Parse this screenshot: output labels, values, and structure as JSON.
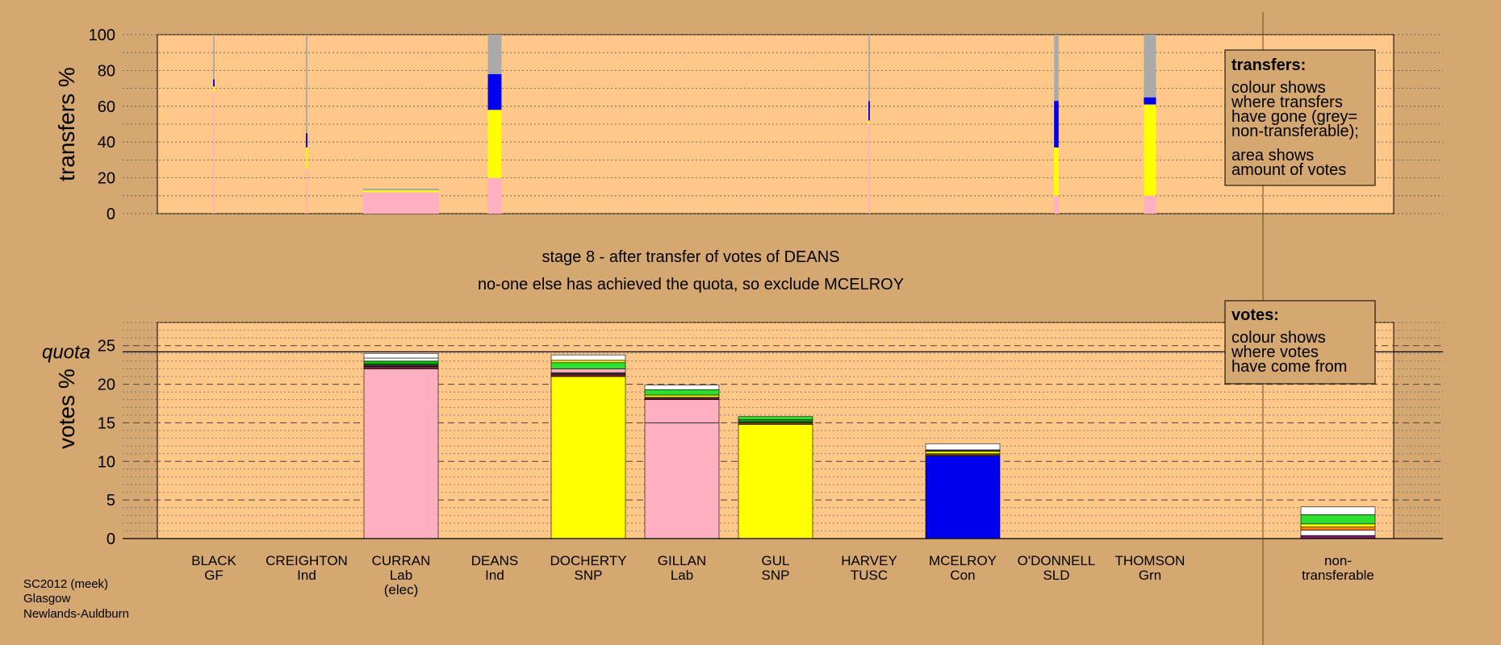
{
  "chart_data": [
    {
      "type": "bar",
      "stacked": true,
      "ylabel": "transfers %",
      "ylim": [
        0,
        100
      ],
      "yticks": [
        0,
        20,
        40,
        60,
        80,
        100
      ],
      "categories": [
        "BLACK",
        "CREIGHTON",
        "CURRAN",
        "DEANS",
        "DOCHERTY",
        "GILLAN",
        "GUL",
        "HARVEY",
        "MCELROY",
        "O'DONNELL",
        "THOMSON"
      ],
      "bar_width_relative": [
        0.02,
        0.02,
        1.0,
        0.18,
        0.0,
        0.0,
        0.0,
        0.02,
        0.0,
        0.06,
        0.16
      ],
      "series": [
        {
          "name": "pink",
          "color": "#ffb0c0",
          "values": [
            68,
            25,
            12,
            20,
            0,
            0,
            0,
            50,
            0,
            10,
            10
          ]
        },
        {
          "name": "yellow",
          "color": "#ffff00",
          "values": [
            3,
            12,
            1,
            38,
            0,
            0,
            0,
            2,
            0,
            27,
            51
          ]
        },
        {
          "name": "blue",
          "color": "#0000ee",
          "values": [
            4,
            8,
            0,
            20,
            0,
            0,
            0,
            11,
            0,
            26,
            4
          ]
        },
        {
          "name": "grey",
          "color": "#aaaaaa",
          "values": [
            25,
            55,
            1,
            22,
            0,
            0,
            0,
            37,
            0,
            37,
            35
          ]
        }
      ],
      "legend": {
        "title": "transfers:",
        "lines": [
          "colour shows",
          "where transfers",
          "have gone (grey=",
          "non-transferable);"
        ],
        "lines2": [
          "area shows",
          "amount of votes"
        ]
      }
    },
    {
      "type": "bar",
      "stacked": true,
      "ylabel": "votes %",
      "ylim": [
        0,
        28
      ],
      "yticks": [
        0,
        5,
        10,
        15,
        20,
        25
      ],
      "quota": 24.2,
      "quota_label": "quota",
      "categories": [
        "BLACK",
        "CREIGHTON",
        "CURRAN",
        "DEANS",
        "DOCHERTY",
        "GILLAN",
        "GUL",
        "HARVEY",
        "MCELROY",
        "O'DONNELL",
        "THOMSON",
        "non-transferable"
      ],
      "category_lines": [
        [
          "BLACK",
          "GF"
        ],
        [
          "CREIGHTON",
          "Ind"
        ],
        [
          "CURRAN",
          "Lab",
          "(elec)"
        ],
        [
          "DEANS",
          "Ind"
        ],
        [
          "DOCHERTY",
          "SNP"
        ],
        [
          "GILLAN",
          "Lab"
        ],
        [
          "GUL",
          "SNP"
        ],
        [
          "HARVEY",
          "TUSC"
        ],
        [
          "MCELROY",
          "Con"
        ],
        [
          "O'DONNELL",
          "SLD"
        ],
        [
          "THOMSON",
          "Grn"
        ],
        [
          "non-",
          "transferable"
        ]
      ],
      "stacks": [
        [],
        [],
        [
          {
            "v": 22.0,
            "c": "#ffb0c0"
          },
          {
            "v": 0.3,
            "c": "#7a1f3a"
          },
          {
            "v": 0.3,
            "c": "#333333"
          },
          {
            "v": 0.4,
            "c": "#00c000"
          },
          {
            "v": 0.4,
            "c": "#ffffff"
          },
          {
            "v": 0.6,
            "c": "#ffffff"
          }
        ],
        [],
        [
          {
            "v": 21.0,
            "c": "#ffff00"
          },
          {
            "v": 0.3,
            "c": "#7a1f3a"
          },
          {
            "v": 0.2,
            "c": "#444444"
          },
          {
            "v": 0.5,
            "c": "#ffb0c0"
          },
          {
            "v": 0.8,
            "c": "#2edf2e"
          },
          {
            "v": 0.3,
            "c": "#ffff00"
          },
          {
            "v": 0.7,
            "c": "#ffffff"
          }
        ],
        [
          {
            "v": 15.0,
            "c": "#ffb0c0"
          },
          {
            "v": 3.0,
            "c": "#ffb0c0"
          },
          {
            "v": 0.3,
            "c": "#5a1a3a"
          },
          {
            "v": 0.3,
            "c": "#ffff00"
          },
          {
            "v": 0.7,
            "c": "#2edf2e"
          },
          {
            "v": 0.6,
            "c": "#ffffff"
          }
        ],
        [
          {
            "v": 14.8,
            "c": "#ffff00"
          },
          {
            "v": 0.3,
            "c": "#5a3a1a"
          },
          {
            "v": 0.3,
            "c": "#00a000"
          },
          {
            "v": 0.4,
            "c": "#2edf2e"
          }
        ],
        [],
        [
          {
            "v": 10.7,
            "c": "#0000ee"
          },
          {
            "v": 0.3,
            "c": "#5a3a1a"
          },
          {
            "v": 0.3,
            "c": "#ffff00"
          },
          {
            "v": 0.2,
            "c": "#444444"
          },
          {
            "v": 0.8,
            "c": "#ffffff"
          }
        ],
        [],
        [],
        [
          {
            "v": 0.4,
            "c": "#7a1f6a"
          },
          {
            "v": 0.7,
            "c": "#ffffff"
          },
          {
            "v": 0.4,
            "c": "#ff8000"
          },
          {
            "v": 0.4,
            "c": "#ffff00"
          },
          {
            "v": 1.2,
            "c": "#2edf2e"
          },
          {
            "v": 1.0,
            "c": "#ffffff"
          }
        ]
      ],
      "legend": {
        "title": "votes:",
        "lines": [
          "colour shows",
          "where votes",
          "have come from"
        ]
      }
    }
  ],
  "stage_text": "stage 8 - after transfer of votes of DEANS",
  "status_text": "no-one else has achieved the quota, so exclude MCELROY",
  "footer": [
    "SC2012 (meek)",
    "Glasgow",
    "Newlands-Auldburn"
  ]
}
